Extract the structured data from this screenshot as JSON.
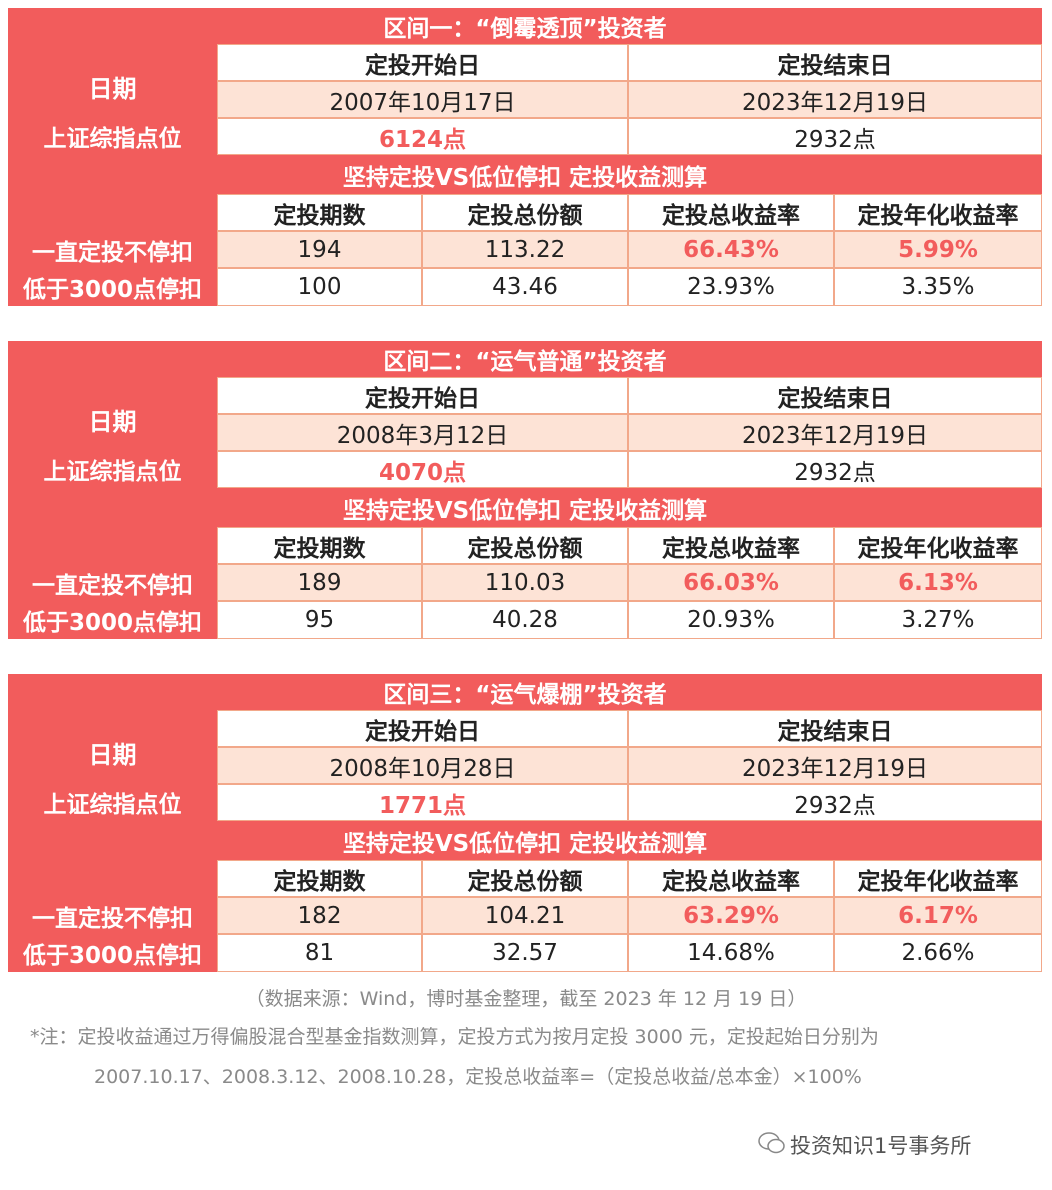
{
  "sections": [
    {
      "title": "区间一：“倒霉透顶”投资者",
      "date_label": "日期",
      "index_label": "上证综指点位",
      "start_header": "定投开始日",
      "end_header": "定投结束日",
      "start_date": "2007年10月17日",
      "end_date": "2023年12月19日",
      "start_index": "6124点",
      "end_index": "2932点",
      "subtitle": "坚持定投VS低位停扣 定投收益测算",
      "columns": [
        "定投期数",
        "定投总份额",
        "定投总收益率",
        "定投年化收益率"
      ],
      "rows": [
        {
          "label": "一直定投不停扣",
          "values": [
            "194",
            "113.22",
            "66.43%",
            "5.99%"
          ]
        },
        {
          "label": "低于3000点停扣",
          "values": [
            "100",
            "43.46",
            "23.93%",
            "3.35%"
          ]
        }
      ]
    },
    {
      "title": "区间二：“运气普通”投资者",
      "date_label": "日期",
      "index_label": "上证综指点位",
      "start_header": "定投开始日",
      "end_header": "定投结束日",
      "start_date": "2008年3月12日",
      "end_date": "2023年12月19日",
      "start_index": "4070点",
      "end_index": "2932点",
      "subtitle": "坚持定投VS低位停扣 定投收益测算",
      "columns": [
        "定投期数",
        "定投总份额",
        "定投总收益率",
        "定投年化收益率"
      ],
      "rows": [
        {
          "label": "一直定投不停扣",
          "values": [
            "189",
            "110.03",
            "66.03%",
            "6.13%"
          ]
        },
        {
          "label": "低于3000点停扣",
          "values": [
            "95",
            "40.28",
            "20.93%",
            "3.27%"
          ]
        }
      ]
    },
    {
      "title": "区间三：“运气爆棚”投资者",
      "date_label": "日期",
      "index_label": "上证综指点位",
      "start_header": "定投开始日",
      "end_header": "定投结束日",
      "start_date": "2008年10月28日",
      "end_date": "2023年12月19日",
      "start_index": "1771点",
      "end_index": "2932点",
      "subtitle": "坚持定投VS低位停扣 定投收益测算",
      "columns": [
        "定投期数",
        "定投总份额",
        "定投总收益率",
        "定投年化收益率"
      ],
      "rows": [
        {
          "label": "一直定投不停扣",
          "values": [
            "182",
            "104.21",
            "63.29%",
            "6.17%"
          ]
        },
        {
          "label": "低于3000点停扣",
          "values": [
            "81",
            "32.57",
            "14.68%",
            "2.66%"
          ]
        }
      ]
    }
  ],
  "source": "（数据来源：Wind，博时基金整理，截至 2023 年 12 月 19 日）",
  "note": [
    "*注：定投收益通过万得偏股混合型基金指数测算，定投方式为按月定投 3000 元，定投起始日分别为",
    "2007.10.17、2008.3.12、2008.10.28，定投总收益率=（定投总收益/总本金）×100%"
  ],
  "watermark": "投资知识1号事务所"
}
